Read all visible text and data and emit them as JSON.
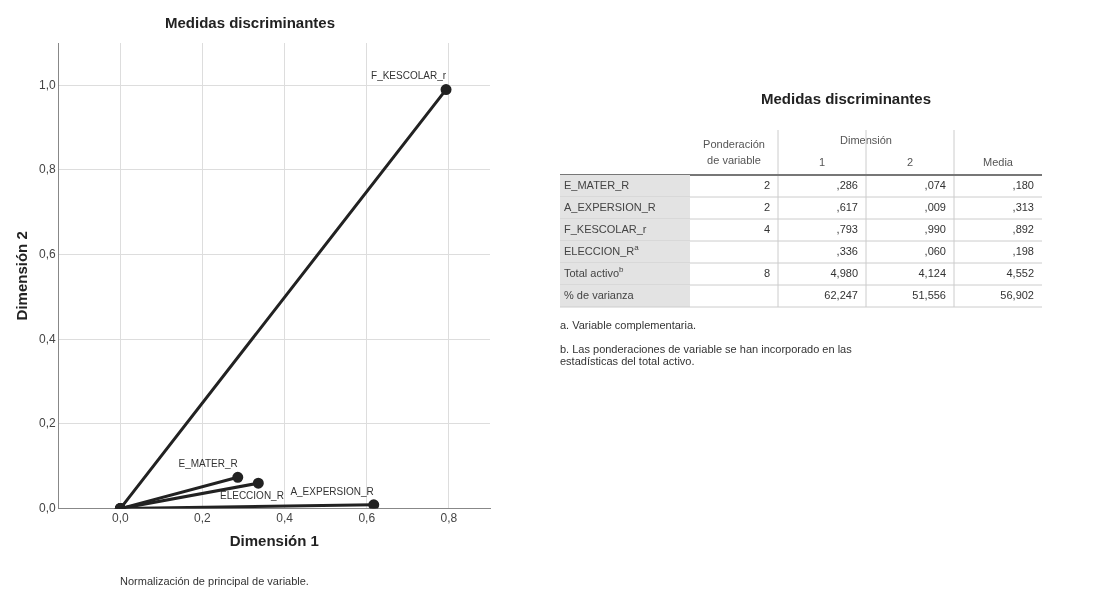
{
  "chart_data": [
    {
      "type": "line",
      "title": "Medidas discriminantes",
      "xlabel": "Dimensión 1",
      "ylabel": "Dimensión 2",
      "annotations": [
        "Normalización de principal de variable."
      ],
      "series": [
        {
          "name": "E_MATER_R",
          "color": "#222222",
          "x": [
            0,
            0.286
          ],
          "values": [
            0,
            0.074
          ]
        },
        {
          "name": "A_EXPERSION_R",
          "color": "#222222",
          "x": [
            0,
            0.617
          ],
          "values": [
            0,
            0.009
          ]
        },
        {
          "name": "F_KESCOLAR_r",
          "color": "#222222",
          "x": [
            0,
            0.793
          ],
          "values": [
            0,
            0.99
          ]
        },
        {
          "name": "ELECCION_R",
          "color": "#222222",
          "x": [
            0,
            0.336
          ],
          "values": [
            0,
            0.06
          ]
        }
      ],
      "xlim": [
        -0.15,
        0.9
      ],
      "ylim": [
        0,
        1.1
      ],
      "xticks": [
        {
          "value": 0,
          "label": "0,0"
        },
        {
          "value": 0.2,
          "label": "0,2"
        },
        {
          "value": 0.4,
          "label": "0,4"
        },
        {
          "value": 0.6,
          "label": "0,6"
        },
        {
          "value": 0.8,
          "label": "0,8"
        }
      ],
      "yticks": [
        {
          "value": 0,
          "label": "0,0"
        },
        {
          "value": 0.2,
          "label": "0,2"
        },
        {
          "value": 0.4,
          "label": "0,4"
        },
        {
          "value": 0.6,
          "label": "0,6"
        },
        {
          "value": 0.8,
          "label": "0,8"
        },
        {
          "value": 1,
          "label": "1,0"
        }
      ],
      "grid": true,
      "legend": false,
      "marker": "circle",
      "line_style": "solid"
    },
    {
      "type": "other",
      "title": "Medidas discriminantes",
      "categories": [
        "Ponderación de variable",
        "1",
        "2",
        "Media"
      ],
      "y_categories": [
        "E_MATER_R",
        "A_EXPERSION_R",
        "F_KESCOLAR_r",
        "ELECCION_R$^{a}$",
        "Total activo$^{b}$",
        "% de varianza"
      ],
      "cell_labels": [
        [
          "2",
          ",286",
          ",074",
          ",180"
        ],
        [
          "2",
          ",617",
          ",009",
          ",313"
        ],
        [
          "4",
          ",793",
          ",990",
          ",892"
        ],
        [
          null,
          ",336",
          ",060",
          ",198"
        ],
        [
          "8",
          "4,980",
          "4,124",
          "4,552"
        ],
        [
          null,
          "62,247",
          "51,556",
          "56,902"
        ]
      ],
      "annotations": [
        "Dimensión",
        "a. Variable complementaria.",
        "b. Las ponderaciones de variable se han incorporado en las estadísticas del total activo."
      ]
    }
  ]
}
